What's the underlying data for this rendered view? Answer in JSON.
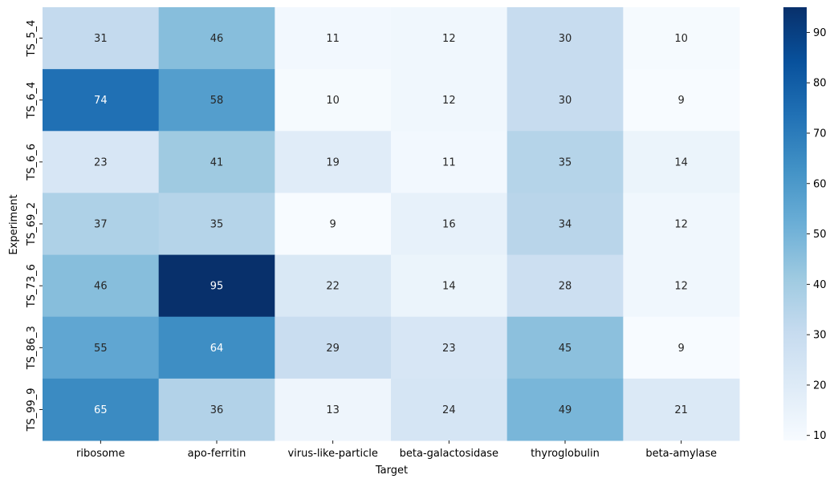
{
  "chart_data": {
    "type": "heatmap",
    "title": "",
    "xlabel": "Target",
    "ylabel": "Experiment",
    "x_categories": [
      "ribosome",
      "apo-ferritin",
      "virus-like-particle",
      "beta-galactosidase",
      "thyroglobulin",
      "beta-amylase"
    ],
    "y_categories": [
      "TS_5_4",
      "TS_6_4",
      "TS_6_6",
      "TS_69_2",
      "TS_73_6",
      "TS_86_3",
      "TS_99_9"
    ],
    "values": [
      [
        31,
        46,
        11,
        12,
        30,
        10
      ],
      [
        74,
        58,
        10,
        12,
        30,
        9
      ],
      [
        23,
        41,
        19,
        11,
        35,
        14
      ],
      [
        37,
        35,
        9,
        16,
        34,
        12
      ],
      [
        46,
        95,
        22,
        14,
        28,
        12
      ],
      [
        55,
        64,
        29,
        23,
        45,
        9
      ],
      [
        65,
        36,
        13,
        24,
        49,
        21
      ]
    ],
    "colormap": "Blues",
    "value_range": [
      9,
      95
    ],
    "colorbar_ticks": [
      10,
      20,
      30,
      40,
      50,
      60,
      70,
      80,
      90
    ],
    "annotations": true,
    "grid": false
  }
}
